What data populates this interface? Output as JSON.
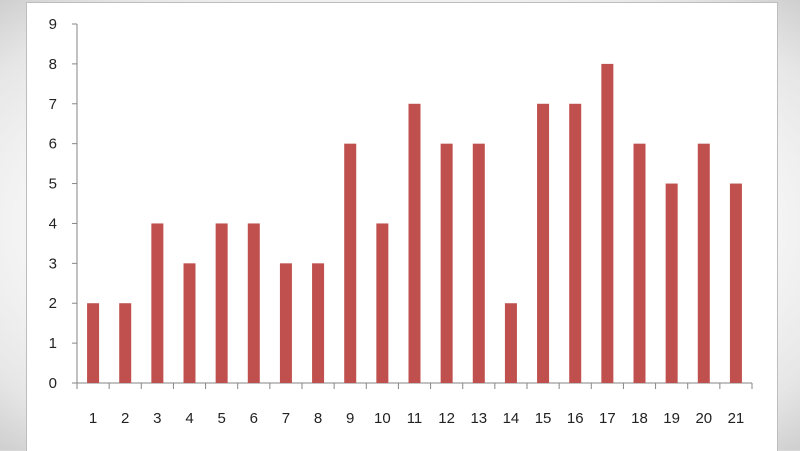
{
  "chart_data": {
    "type": "bar",
    "categories": [
      "1",
      "2",
      "3",
      "4",
      "5",
      "6",
      "7",
      "8",
      "9",
      "10",
      "11",
      "12",
      "13",
      "14",
      "15",
      "16",
      "17",
      "18",
      "19",
      "20",
      "21"
    ],
    "series": [
      {
        "values": [
          2,
          2,
          4,
          3,
          4,
          4,
          3,
          3,
          6,
          4,
          7,
          6,
          6,
          2,
          7,
          7,
          8,
          6,
          5,
          6,
          5
        ]
      }
    ],
    "yticks": [
      "0",
      "1",
      "2",
      "3",
      "4",
      "5",
      "6",
      "7",
      "8",
      "9"
    ],
    "ylim": [
      0,
      9
    ],
    "title": "",
    "xlabel": "",
    "ylabel": "",
    "grid": false,
    "legend": "none",
    "colors": {
      "bar": "#c0504d",
      "axis": "#868686"
    }
  }
}
